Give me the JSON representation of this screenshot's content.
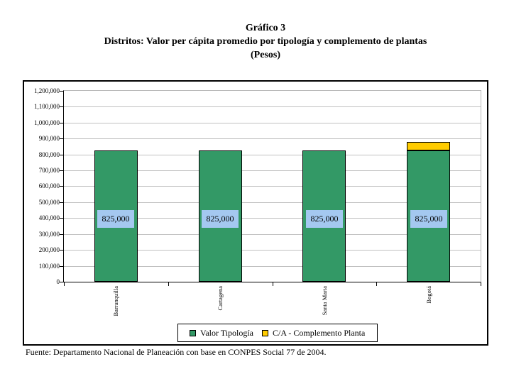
{
  "title": {
    "line1": "Gráfico 3",
    "line2": "Distritos: Valor per cápita promedio por tipología y complemento de plantas",
    "line3": "(Pesos)"
  },
  "source": "Fuente: Departamento Nacional de Planeación con base en CONPES Social 77 de 2004.",
  "colors": {
    "valor_tipologia": "#339966",
    "complemento_planta": "#FFCC00",
    "bar_label_bg": "#A4C8F0",
    "gridline": "#C0C0C0",
    "axis": "#000000"
  },
  "legend": {
    "items": [
      {
        "label": "Valor Tipología",
        "color": "#339966"
      },
      {
        "label": "C/A - Complemento Planta",
        "color": "#FFCC00"
      }
    ]
  },
  "chart_data": {
    "type": "bar",
    "stacked": true,
    "title": "Gráfico 3 — Distritos: Valor per cápita promedio por tipología y complemento de plantas (Pesos)",
    "xlabel": "",
    "ylabel": "",
    "categories": [
      "Barranquilla",
      "Cartagena",
      "Santa Marta",
      "Bogotá"
    ],
    "series": [
      {
        "name": "Valor Tipología",
        "color": "#339966",
        "values": [
          825000,
          825000,
          825000,
          825000
        ]
      },
      {
        "name": "C/A - Complemento Planta",
        "color": "#FFCC00",
        "values": [
          0,
          0,
          0,
          50000
        ]
      }
    ],
    "bar_labels": [
      "825,000",
      "825,000",
      "825,000",
      "825,000"
    ],
    "ylim": [
      0,
      1200000
    ],
    "ytick_step": 100000,
    "ytick_labels": [
      "0",
      "100,000",
      "200,000",
      "300,000",
      "400,000",
      "500,000",
      "600,000",
      "700,000",
      "800,000",
      "900,000",
      "1,000,000",
      "1,100,000",
      "1,200,000"
    ],
    "grid": true,
    "legend_position": "bottom"
  }
}
